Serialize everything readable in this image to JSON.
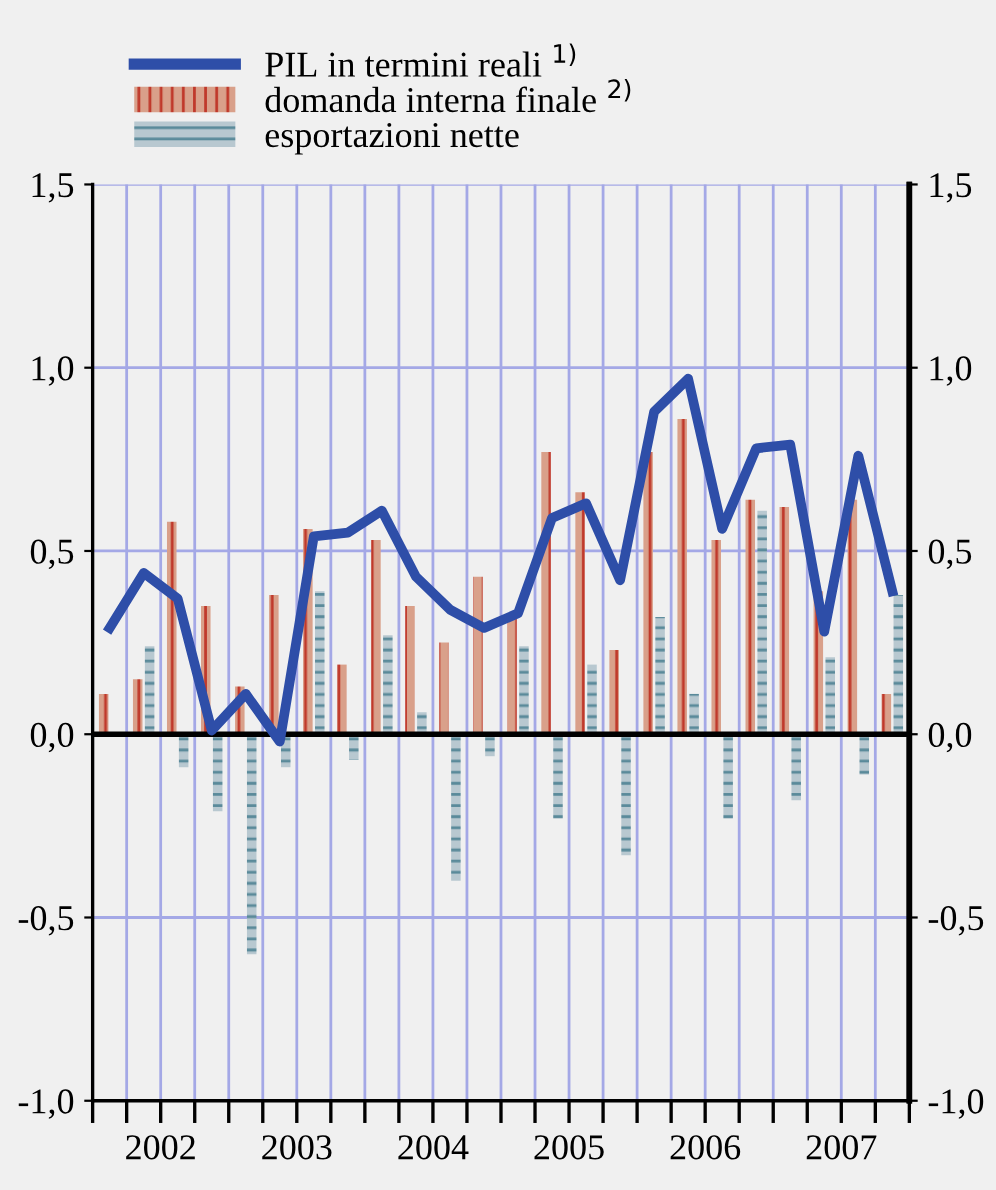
{
  "chart_data": {
    "type": "bar",
    "x": [
      2002.125,
      2002.375,
      2002.625,
      2002.875,
      2003.125,
      2003.375,
      2003.625,
      2003.875,
      2004.125,
      2004.375,
      2004.625,
      2004.875,
      2005.125,
      2005.375,
      2005.625,
      2005.875,
      2006.125,
      2006.375,
      2006.625,
      2006.875,
      2007.125,
      2007.375,
      2007.625,
      2007.875
    ],
    "series": [
      {
        "name": "domanda interna finale $^{2)}$",
        "color": "#d9a08a",
        "values": [
          0.11,
          0.15,
          0.58,
          0.35,
          0.13,
          0.38,
          0.56,
          0.19,
          0.53,
          0.35,
          0.25,
          0.43,
          0.32,
          0.77,
          0.66,
          0.23,
          0.77,
          0.86,
          0.53,
          0.64,
          0.62,
          0.39,
          0.64,
          0.11
        ]
      },
      {
        "name": "esportazioni nette",
        "color": "#b8c8d0",
        "values": [
          0,
          0.24,
          -0.09,
          -0.21,
          -0.6,
          -0.09,
          0.39,
          -0.07,
          0.27,
          0.06,
          -0.4,
          -0.06,
          0.24,
          -0.23,
          0.19,
          -0.33,
          0.32,
          0.11,
          -0.23,
          0.61,
          -0.18,
          0.21,
          -0.11,
          0.38
        ]
      },
      {
        "name": "PIL in termini reali $^{1)}$",
        "type": "line",
        "color": "#2e4ea8",
        "values": [
          0.29,
          0.44,
          0.37,
          0.01,
          0.11,
          -0.02,
          0.54,
          0.55,
          0.61,
          0.43,
          0.34,
          0.29,
          0.33,
          0.59,
          0.63,
          0.42,
          0.88,
          0.97,
          0.56,
          0.78,
          0.79,
          0.28,
          0.76,
          0.39
        ]
      }
    ],
    "xlim": [
      2002,
      2008
    ],
    "xticks": [
      {
        "value": 2002,
        "label": null
      },
      {
        "value": 2002.25,
        "label": null
      },
      {
        "value": 2002.5,
        "label": "2002"
      },
      {
        "value": 2002.75,
        "label": null
      },
      {
        "value": 2003,
        "label": null
      },
      {
        "value": 2003.25,
        "label": null
      },
      {
        "value": 2003.5,
        "label": "2003"
      },
      {
        "value": 2003.75,
        "label": null
      },
      {
        "value": 2004,
        "label": null
      },
      {
        "value": 2004.25,
        "label": null
      },
      {
        "value": 2004.5,
        "label": "2004"
      },
      {
        "value": 2004.75,
        "label": null
      },
      {
        "value": 2005,
        "label": null
      },
      {
        "value": 2005.25,
        "label": null
      },
      {
        "value": 2005.5,
        "label": "2005"
      },
      {
        "value": 2005.75,
        "label": null
      },
      {
        "value": 2006,
        "label": null
      },
      {
        "value": 2006.25,
        "label": null
      },
      {
        "value": 2006.5,
        "label": "2006"
      },
      {
        "value": 2006.75,
        "label": null
      },
      {
        "value": 2007,
        "label": null
      },
      {
        "value": 2007.25,
        "label": null
      },
      {
        "value": 2007.5,
        "label": "2007"
      },
      {
        "value": 2007.75,
        "label": null
      },
      {
        "value": 2008,
        "label": null
      }
    ],
    "ylim": [
      -1.0,
      1.5
    ],
    "yticks": [
      {
        "value": -1.0,
        "label": "-1,0"
      },
      {
        "value": -0.5,
        "label": "-0,5"
      },
      {
        "value": 0.0,
        "label": "0,0"
      },
      {
        "value": 0.5,
        "label": "0,5"
      },
      {
        "value": 1.0,
        "label": "1,0"
      },
      {
        "value": 1.5,
        "label": "1,5"
      }
    ],
    "y2lim": [
      -1.0,
      1.5
    ],
    "y2ticks": [
      {
        "value": -1.0,
        "label": "-1,0"
      },
      {
        "value": -0.5,
        "label": "-0,5"
      },
      {
        "value": 0.0,
        "label": "0,0"
      },
      {
        "value": 0.5,
        "label": "0,5"
      },
      {
        "value": 1.0,
        "label": "1,0"
      },
      {
        "value": 1.5,
        "label": "1,5"
      }
    ],
    "ref_lines": [
      {
        "axis": "y",
        "value": 0.0,
        "label": null,
        "color": "#000000",
        "line_style": "solid"
      }
    ],
    "grid": true,
    "legend": "top left"
  }
}
